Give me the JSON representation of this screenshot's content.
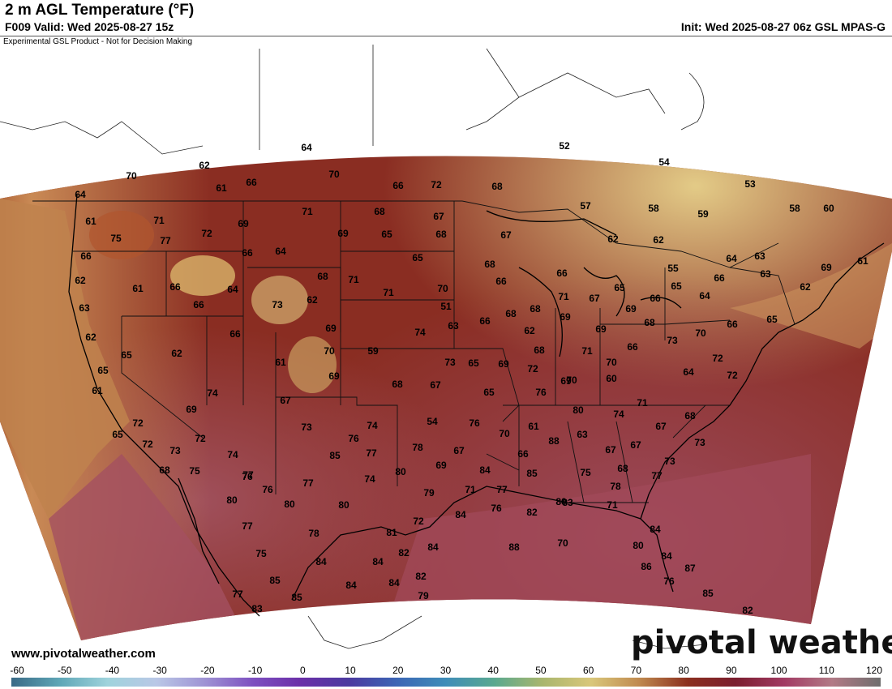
{
  "header": {
    "title": "2 m AGL Temperature (°F)",
    "valid": "F009 Valid: Wed 2025-08-27 15z",
    "init": "Init: Wed 2025-08-27 06z GSL MPAS-G",
    "disclaimer": "Experimental GSL Product - Not for Decision Making"
  },
  "footer": {
    "site": "www.pivotalweather.com",
    "logo": "pivotal weather"
  },
  "colorbar": {
    "ticks": [
      "-60",
      "-50",
      "-40",
      "-30",
      "-20",
      "-10",
      "0",
      "10",
      "20",
      "30",
      "40",
      "50",
      "60",
      "70",
      "80",
      "90",
      "100",
      "110",
      "120"
    ],
    "stops": [
      "#3a6a86",
      "#5fa7b7",
      "#9fd3dc",
      "#b9c7e6",
      "#9f93d4",
      "#7d4fc0",
      "#6b2fa8",
      "#4b3aa0",
      "#3b66b5",
      "#3f8db8",
      "#5aa98f",
      "#a9b66d",
      "#d9c77a",
      "#c08a4f",
      "#8b2f1e",
      "#7a1d2e",
      "#a23a63",
      "#b27a86",
      "#6e6e6e"
    ]
  },
  "map": {
    "background_colors": {
      "warm": "#8a2a22",
      "hot": "#a24a5a",
      "cool": "#c9a25a",
      "cold": "#e8d59a",
      "ocean": "#b26a3e"
    },
    "labels": [
      {
        "t": "64"
      },
      {
        "t": "52"
      },
      {
        "t": "70"
      },
      {
        "t": "62"
      },
      {
        "t": "70"
      },
      {
        "t": "54"
      },
      {
        "t": "61"
      },
      {
        "t": "66"
      },
      {
        "t": "66"
      },
      {
        "t": "72"
      },
      {
        "t": "68"
      },
      {
        "t": "53"
      },
      {
        "t": "64"
      },
      {
        "t": "57"
      },
      {
        "t": "58"
      },
      {
        "t": "59"
      },
      {
        "t": "58"
      },
      {
        "t": "60"
      },
      {
        "t": "61"
      },
      {
        "t": "71"
      },
      {
        "t": "71"
      },
      {
        "t": "68"
      },
      {
        "t": "67"
      },
      {
        "t": "75"
      },
      {
        "t": "77"
      },
      {
        "t": "72"
      },
      {
        "t": "69"
      },
      {
        "t": "69"
      },
      {
        "t": "65"
      },
      {
        "t": "68"
      },
      {
        "t": "67"
      },
      {
        "t": "62"
      },
      {
        "t": "62"
      },
      {
        "t": "66"
      },
      {
        "t": "66"
      },
      {
        "t": "64"
      },
      {
        "t": "65"
      },
      {
        "t": "68"
      },
      {
        "t": "55"
      },
      {
        "t": "64"
      },
      {
        "t": "63"
      },
      {
        "t": "69"
      },
      {
        "t": "61"
      },
      {
        "t": "62"
      },
      {
        "t": "61"
      },
      {
        "t": "66"
      },
      {
        "t": "64"
      },
      {
        "t": "68"
      },
      {
        "t": "71"
      },
      {
        "t": "71"
      },
      {
        "t": "70"
      },
      {
        "t": "66"
      },
      {
        "t": "66"
      },
      {
        "t": "65"
      },
      {
        "t": "66"
      },
      {
        "t": "63"
      },
      {
        "t": "63"
      },
      {
        "t": "66"
      },
      {
        "t": "73"
      },
      {
        "t": "62"
      },
      {
        "t": "51"
      },
      {
        "t": "68"
      },
      {
        "t": "71"
      },
      {
        "t": "67"
      },
      {
        "t": "65"
      },
      {
        "t": "69"
      },
      {
        "t": "66"
      },
      {
        "t": "64"
      },
      {
        "t": "62"
      },
      {
        "t": "62"
      },
      {
        "t": "66"
      },
      {
        "t": "69"
      },
      {
        "t": "74"
      },
      {
        "t": "63"
      },
      {
        "t": "66"
      },
      {
        "t": "68"
      },
      {
        "t": "69"
      },
      {
        "t": "69"
      },
      {
        "t": "68"
      },
      {
        "t": "70"
      },
      {
        "t": "66"
      },
      {
        "t": "65"
      },
      {
        "t": "65"
      },
      {
        "t": "62"
      },
      {
        "t": "70"
      },
      {
        "t": "59"
      },
      {
        "t": "61"
      },
      {
        "t": "62"
      },
      {
        "t": "65"
      },
      {
        "t": "69"
      },
      {
        "t": "68"
      },
      {
        "t": "72"
      },
      {
        "t": "71"
      },
      {
        "t": "70"
      },
      {
        "t": "66"
      },
      {
        "t": "73"
      },
      {
        "t": "65"
      },
      {
        "t": "69"
      },
      {
        "t": "68"
      },
      {
        "t": "67"
      },
      {
        "t": "73"
      },
      {
        "t": "65"
      },
      {
        "t": "70"
      },
      {
        "t": "64"
      },
      {
        "t": "60"
      },
      {
        "t": "72"
      },
      {
        "t": "72"
      },
      {
        "t": "61"
      },
      {
        "t": "74"
      },
      {
        "t": "69"
      },
      {
        "t": "67"
      },
      {
        "t": "71"
      },
      {
        "t": "76"
      },
      {
        "t": "80"
      },
      {
        "t": "74"
      },
      {
        "t": "67"
      },
      {
        "t": "68"
      },
      {
        "t": "65"
      },
      {
        "t": "72"
      },
      {
        "t": "69"
      },
      {
        "t": "73"
      },
      {
        "t": "74"
      },
      {
        "t": "54"
      },
      {
        "t": "76"
      },
      {
        "t": "61"
      },
      {
        "t": "70"
      },
      {
        "t": "63"
      },
      {
        "t": "67"
      },
      {
        "t": "67"
      },
      {
        "t": "73"
      },
      {
        "t": "72"
      },
      {
        "t": "73"
      },
      {
        "t": "72"
      },
      {
        "t": "76"
      },
      {
        "t": "78"
      },
      {
        "t": "67"
      },
      {
        "t": "85"
      },
      {
        "t": "88"
      },
      {
        "t": "66"
      },
      {
        "t": "73"
      },
      {
        "t": "68"
      },
      {
        "t": "75"
      },
      {
        "t": "74"
      },
      {
        "t": "76"
      },
      {
        "t": "77"
      },
      {
        "t": "69"
      },
      {
        "t": "84"
      },
      {
        "t": "85"
      },
      {
        "t": "75"
      },
      {
        "t": "68"
      },
      {
        "t": "77"
      },
      {
        "t": "77"
      },
      {
        "t": "76"
      },
      {
        "t": "77"
      },
      {
        "t": "74"
      },
      {
        "t": "80"
      },
      {
        "t": "79"
      },
      {
        "t": "71"
      },
      {
        "t": "77"
      },
      {
        "t": "78"
      },
      {
        "t": "80"
      },
      {
        "t": "80"
      },
      {
        "t": "80"
      },
      {
        "t": "80"
      },
      {
        "t": "76"
      },
      {
        "t": "84"
      },
      {
        "t": "72"
      },
      {
        "t": "71"
      },
      {
        "t": "77"
      },
      {
        "t": "78"
      },
      {
        "t": "81"
      },
      {
        "t": "82"
      },
      {
        "t": "83"
      },
      {
        "t": "84"
      },
      {
        "t": "75"
      },
      {
        "t": "84"
      },
      {
        "t": "84"
      },
      {
        "t": "82"
      },
      {
        "t": "84"
      },
      {
        "t": "88"
      },
      {
        "t": "70"
      },
      {
        "t": "80"
      },
      {
        "t": "84"
      },
      {
        "t": "85"
      },
      {
        "t": "84"
      },
      {
        "t": "84"
      },
      {
        "t": "82"
      },
      {
        "t": "86"
      },
      {
        "t": "87"
      },
      {
        "t": "76"
      },
      {
        "t": "77"
      },
      {
        "t": "85"
      },
      {
        "t": "83"
      },
      {
        "t": "79"
      },
      {
        "t": "85"
      },
      {
        "t": "82"
      },
      {
        "t": "84"
      },
      {
        "t": "83"
      },
      {
        "t": "85"
      },
      {
        "t": "86"
      },
      {
        "t": "84"
      }
    ]
  }
}
